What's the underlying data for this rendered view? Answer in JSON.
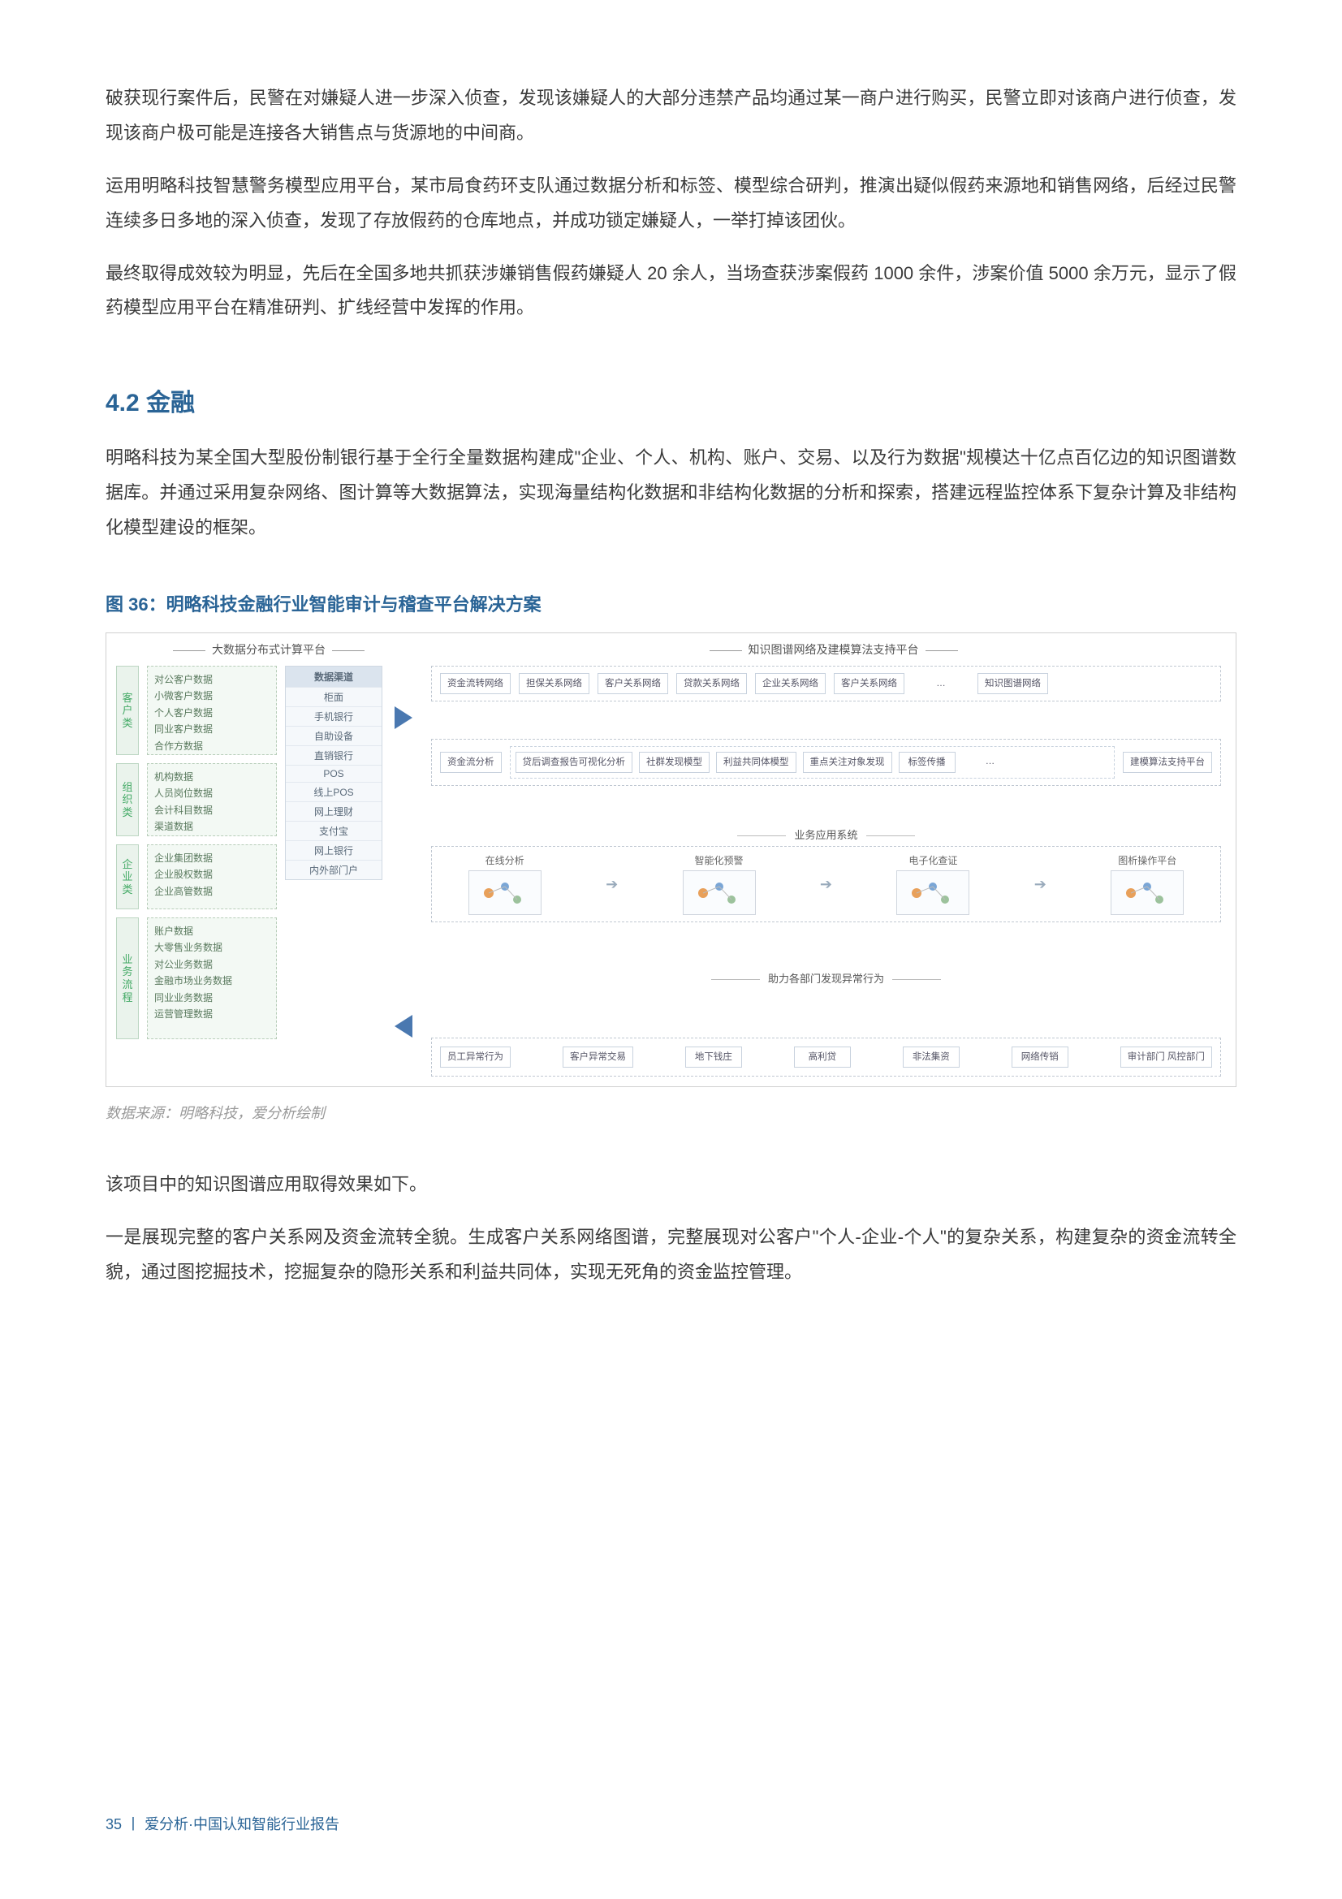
{
  "paragraphs": {
    "p1": "破获现行案件后，民警在对嫌疑人进一步深入侦查，发现该嫌疑人的大部分违禁产品均通过某一商户进行购买，民警立即对该商户进行侦查，发现该商户极可能是连接各大销售点与货源地的中间商。",
    "p2": "运用明略科技智慧警务模型应用平台，某市局食药环支队通过数据分析和标签、模型综合研判，推演出疑似假药来源地和销售网络，后经过民警连续多日多地的深入侦查，发现了存放假药的仓库地点，并成功锁定嫌疑人，一举打掉该团伙。",
    "p3": "最终取得成效较为明显，先后在全国多地共抓获涉嫌销售假药嫌疑人 20 余人，当场查获涉案假药 1000 余件，涉案价值 5000 余万元，显示了假药模型应用平台在精准研判、扩线经营中发挥的作用。",
    "section_title": "4.2 金融",
    "p4": "明略科技为某全国大型股份制银行基于全行全量数据构建成\"企业、个人、机构、账户、交易、以及行为数据\"规模达十亿点百亿边的知识图谱数据库。并通过采用复杂网络、图计算等大数据算法，实现海量结构化数据和非结构化数据的分析和探索，搭建远程监控体系下复杂计算及非结构化模型建设的框架。",
    "fig_title": "图 36：明略科技金融行业智能审计与稽查平台解决方案",
    "source": "数据来源：明略科技，爱分析绘制",
    "p5": "该项目中的知识图谱应用取得效果如下。",
    "p6": "一是展现完整的客户关系网及资金流转全貌。生成客户关系网络图谱，完整展现对公客户\"个人-企业-个人\"的复杂关系，构建复杂的资金流转全貌，通过图挖掘技术，挖掘复杂的隐形关系和利益共同体，实现无死角的资金监控管理。"
  },
  "footer": {
    "page": "35",
    "sep": "丨",
    "title": "爱分析·中国认知智能行业报告"
  },
  "colors": {
    "heading": "#2a6496",
    "body": "#3a3a3a",
    "muted": "#9a9a9a",
    "box_border": "#c0c8d2",
    "arrow": "#4a78b0",
    "side_bg": "#eaf3ec"
  },
  "diagram": {
    "type": "flowchart",
    "headers": {
      "left": "大数据分布式计算平台",
      "right": "知识图谱网络及建模算法支持平台"
    },
    "side_groups": [
      {
        "label": "客户类",
        "items": [
          "对公客户数据",
          "小微客户数据",
          "个人客户数据",
          "同业客户数据",
          "合作方数据"
        ]
      },
      {
        "label": "组织类",
        "items": [
          "机构数据",
          "人员岗位数据",
          "会计科目数据",
          "渠道数据"
        ]
      },
      {
        "label": "企业类",
        "items": [
          "企业集团数据",
          "企业股权数据",
          "企业高管数据"
        ]
      },
      {
        "label": "业务流程",
        "items": [
          "账户数据",
          "大零售业务数据",
          "对公业务数据",
          "金融市场业务数据",
          "同业业务数据",
          "运营管理数据"
        ]
      }
    ],
    "channel_col": {
      "header": "数据渠道",
      "items": [
        "柜面",
        "手机银行",
        "自助设备",
        "直销银行",
        "POS",
        "线上POS",
        "网上理财",
        "支付宝",
        "网上银行",
        "内外部门户"
      ]
    },
    "kg_rows": {
      "row1": [
        "资金流转网络",
        "担保关系网络",
        "客户关系网络",
        "贷款关系网络",
        "企业关系网络",
        "客户关系网络",
        "…",
        "知识图谱网络"
      ],
      "row2_left": "资金流分析",
      "row2_mid_items": [
        "贷后调查报告可视化分析",
        "社群发现模型",
        "利益共同体模型",
        "重点关注对象发现",
        "标签传播",
        "…"
      ],
      "row2_right": "建模算法支持平台"
    },
    "app_title": "业务应用系统",
    "app_items": [
      "在线分析",
      "智能化预警",
      "电子化查证",
      "图析操作平台"
    ],
    "bottom_title": "助力各部门发现异常行为",
    "bottom_items": [
      "员工异常行为",
      "客户异常交易",
      "地下钱庄",
      "高利贷",
      "非法集资",
      "网络传销",
      "审计部门 风控部门"
    ]
  }
}
